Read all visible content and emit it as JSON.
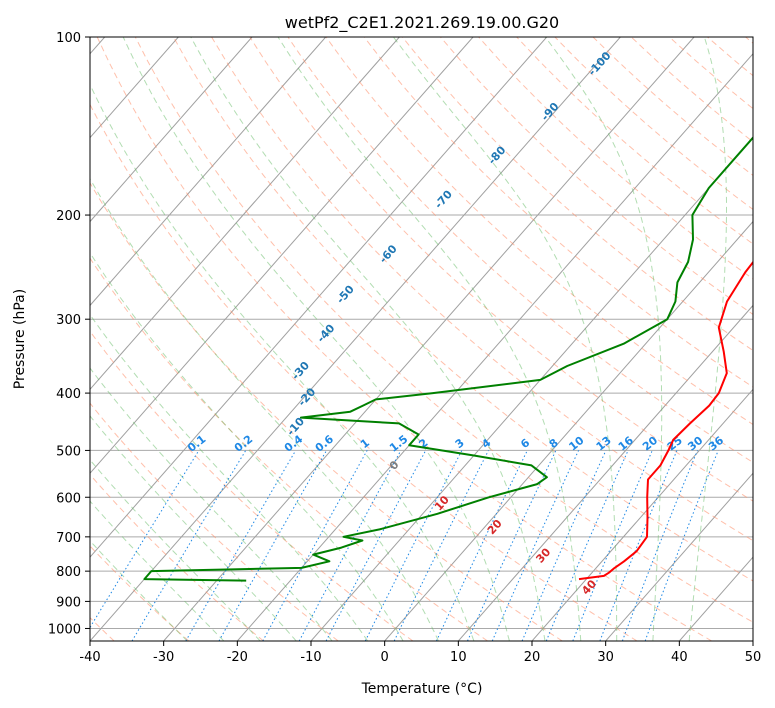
{
  "chart_data": {
    "type": "line",
    "title": "wetPf2_C2E1.2021.269.19.00.G20",
    "xlabel": "Temperature (°C)",
    "ylabel": "Pressure (hPa)",
    "xlim": [
      -40,
      50
    ],
    "ylim": [
      1050,
      100
    ],
    "y_scale": "log",
    "grid": true,
    "x_ticks": [
      "-40",
      "-30",
      "-20",
      "-10",
      "0",
      "10",
      "20",
      "30",
      "40",
      "50"
    ],
    "y_ticks": [
      "100",
      "200",
      "300",
      "400",
      "500",
      "600",
      "700",
      "800",
      "900",
      "1000"
    ],
    "colors": {
      "temperature": "#ff0000",
      "dewpoint": "#008000",
      "dry_adiabat": "#ff8c66",
      "moist_adiabat": "#66bb66",
      "mixing_ratio": "#1e88e5",
      "isotherm": "#999999"
    },
    "series": [
      {
        "data": [
          {
            "p": 825,
            "t": 19
          },
          {
            "p": 815,
            "t": 22
          },
          {
            "p": 805,
            "t": 22.3
          },
          {
            "p": 790,
            "t": 22.5
          },
          {
            "p": 770,
            "t": 23
          },
          {
            "p": 740,
            "t": 23.5
          },
          {
            "p": 700,
            "t": 23.2
          },
          {
            "p": 650,
            "t": 21
          },
          {
            "p": 600,
            "t": 18.5
          },
          {
            "p": 560,
            "t": 16.5
          },
          {
            "p": 530,
            "t": 16.5
          },
          {
            "p": 500,
            "t": 15.8
          },
          {
            "p": 480,
            "t": 15.2
          },
          {
            "p": 450,
            "t": 15.5
          },
          {
            "p": 420,
            "t": 16
          },
          {
            "p": 400,
            "t": 15.8
          },
          {
            "p": 370,
            "t": 14.5
          },
          {
            "p": 340,
            "t": 11.5
          },
          {
            "p": 310,
            "t": 8
          },
          {
            "p": 280,
            "t": 6
          },
          {
            "p": 250,
            "t": 5
          },
          {
            "p": 220,
            "t": 4.5
          },
          {
            "p": 200,
            "t": 4
          },
          {
            "p": 180,
            "t": 4
          },
          {
            "p": 160,
            "t": 4
          },
          {
            "p": 150,
            "t": 4.5
          },
          {
            "p": 140,
            "t": 7.5
          },
          {
            "p": 130,
            "t": 9
          },
          {
            "p": 120,
            "t": 9.5
          },
          {
            "p": 110,
            "t": 9
          },
          {
            "p": 100,
            "t": 9.5
          }
        ]
      },
      {
        "data": [
          {
            "p": 830,
            "t": -26
          },
          {
            "p": 828,
            "t": -32
          },
          {
            "p": 825,
            "t": -40
          },
          {
            "p": 800,
            "t": -40
          },
          {
            "p": 795,
            "t": -30
          },
          {
            "p": 790,
            "t": -20
          },
          {
            "p": 770,
            "t": -17
          },
          {
            "p": 750,
            "t": -20
          },
          {
            "p": 730,
            "t": -17
          },
          {
            "p": 710,
            "t": -15
          },
          {
            "p": 700,
            "t": -18
          },
          {
            "p": 680,
            "t": -14
          },
          {
            "p": 640,
            "t": -8
          },
          {
            "p": 600,
            "t": -3
          },
          {
            "p": 570,
            "t": 2
          },
          {
            "p": 555,
            "t": 2.5
          },
          {
            "p": 530,
            "t": -1
          },
          {
            "p": 510,
            "t": -10
          },
          {
            "p": 490,
            "t": -20
          },
          {
            "p": 470,
            "t": -20
          },
          {
            "p": 450,
            "t": -24
          },
          {
            "p": 440,
            "t": -38
          },
          {
            "p": 430,
            "t": -32
          },
          {
            "p": 420,
            "t": -31
          },
          {
            "p": 410,
            "t": -30
          },
          {
            "p": 400,
            "t": -23
          },
          {
            "p": 380,
            "t": -10
          },
          {
            "p": 360,
            "t": -8
          },
          {
            "p": 330,
            "t": -3
          },
          {
            "p": 300,
            "t": 0
          },
          {
            "p": 280,
            "t": -1
          },
          {
            "p": 260,
            "t": -3
          },
          {
            "p": 240,
            "t": -4
          },
          {
            "p": 220,
            "t": -6
          },
          {
            "p": 200,
            "t": -9
          },
          {
            "p": 180,
            "t": -10
          },
          {
            "p": 160,
            "t": -10
          },
          {
            "p": 150,
            "t": -10
          },
          {
            "p": 140,
            "t": -10
          },
          {
            "p": 130,
            "t": -11
          },
          {
            "p": 120,
            "t": -12
          },
          {
            "p": 115,
            "t": -11
          },
          {
            "p": 110,
            "t": -8
          },
          {
            "p": 105,
            "t": -5
          },
          {
            "p": 100,
            "t": -1
          }
        ]
      }
    ],
    "mixing_ratio_labels": [
      "0.1",
      "0.2",
      "0.4",
      "0.6",
      "1",
      "1.5",
      "2",
      "3",
      "4",
      "6",
      "8",
      "10",
      "13",
      "16",
      "20",
      "25",
      "30",
      "36"
    ],
    "mixing_ratio_values": [
      0.1,
      0.2,
      0.4,
      0.6,
      1,
      1.5,
      2,
      3,
      4,
      6,
      8,
      10,
      13,
      16,
      20,
      25,
      30,
      36
    ],
    "moist_labels": [
      {
        "text": "-100",
        "p": 112,
        "t": -39
      },
      {
        "text": "-90",
        "p": 135,
        "t": -40
      },
      {
        "text": "-80",
        "p": 160,
        "t": -42
      },
      {
        "text": "-70",
        "p": 190,
        "t": -44
      },
      {
        "text": "-60",
        "p": 235,
        "t": -45
      },
      {
        "text": "-50",
        "p": 275,
        "t": -46
      },
      {
        "text": "-40",
        "p": 320,
        "t": -44
      },
      {
        "text": "-30",
        "p": 370,
        "t": -43
      },
      {
        "text": "-20",
        "p": 410,
        "t": -39
      },
      {
        "text": "-10",
        "p": 460,
        "t": -37
      }
    ],
    "moist_labels_warm": [
      {
        "text": "0",
        "p": 535,
        "t": 0
      },
      {
        "text": "10",
        "p": 620,
        "t": 10
      },
      {
        "text": "20",
        "p": 680,
        "t": 20
      },
      {
        "text": "30",
        "p": 760,
        "t": 30
      },
      {
        "text": "40",
        "p": 860,
        "t": 40
      }
    ]
  }
}
